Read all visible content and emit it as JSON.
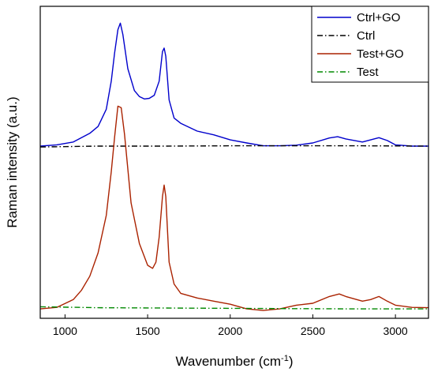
{
  "chart_data": {
    "type": "line",
    "xlabel": "Wavenumber (cm",
    "xlabel_sup": "-1",
    "xlabel_tail": ")",
    "ylabel": "Raman intensity (a.u.)",
    "xlim": [
      850,
      3200
    ],
    "ylim": [
      0,
      1
    ],
    "x_ticks": [
      1000,
      1500,
      2000,
      2500,
      3000
    ],
    "x_tick_labels": [
      "1000",
      "1500",
      "2000",
      "2500",
      "3000"
    ],
    "y_ticks_shown": false,
    "grid": false,
    "legend_position": "top-right",
    "series": [
      {
        "name": "Ctrl+GO",
        "color": "#0000cc",
        "style": "solid",
        "x": [
          850,
          950,
          1050,
          1150,
          1200,
          1250,
          1280,
          1300,
          1320,
          1335,
          1350,
          1380,
          1420,
          1450,
          1480,
          1510,
          1540,
          1570,
          1590,
          1600,
          1610,
          1630,
          1660,
          1700,
          1800,
          1900,
          2000,
          2100,
          2200,
          2300,
          2400,
          2500,
          2600,
          2650,
          2700,
          2800,
          2850,
          2900,
          2950,
          3000,
          3100,
          3200
        ],
        "y": [
          0.552,
          0.556,
          0.565,
          0.593,
          0.615,
          0.67,
          0.76,
          0.85,
          0.925,
          0.946,
          0.91,
          0.8,
          0.73,
          0.711,
          0.703,
          0.705,
          0.715,
          0.76,
          0.855,
          0.866,
          0.84,
          0.7,
          0.642,
          0.625,
          0.6,
          0.588,
          0.572,
          0.562,
          0.553,
          0.553,
          0.555,
          0.562,
          0.578,
          0.582,
          0.575,
          0.565,
          0.572,
          0.579,
          0.57,
          0.556,
          0.552,
          0.552
        ]
      },
      {
        "name": "Ctrl",
        "color": "#000000",
        "style": "dashdot",
        "x": [
          850,
          1200,
          1600,
          2000,
          2400,
          2800,
          3200
        ],
        "y": [
          0.549,
          0.552,
          0.552,
          0.553,
          0.553,
          0.553,
          0.552
        ]
      },
      {
        "name": "Test+GO",
        "color": "#aa2200",
        "style": "solid",
        "x": [
          850,
          950,
          1050,
          1100,
          1150,
          1200,
          1250,
          1280,
          1300,
          1320,
          1340,
          1360,
          1400,
          1450,
          1500,
          1530,
          1550,
          1570,
          1590,
          1600,
          1610,
          1630,
          1660,
          1700,
          1800,
          1900,
          2000,
          2100,
          2200,
          2300,
          2400,
          2500,
          2600,
          2660,
          2700,
          2800,
          2850,
          2900,
          2950,
          3000,
          3100,
          3200
        ],
        "y": [
          0.03,
          0.035,
          0.06,
          0.09,
          0.135,
          0.21,
          0.33,
          0.47,
          0.58,
          0.68,
          0.675,
          0.59,
          0.37,
          0.24,
          0.17,
          0.16,
          0.18,
          0.26,
          0.39,
          0.427,
          0.39,
          0.18,
          0.11,
          0.08,
          0.065,
          0.055,
          0.045,
          0.03,
          0.025,
          0.03,
          0.042,
          0.048,
          0.07,
          0.078,
          0.07,
          0.055,
          0.06,
          0.07,
          0.055,
          0.042,
          0.035,
          0.034
        ]
      },
      {
        "name": "Test",
        "color": "#008800",
        "style": "dashdot",
        "x": [
          850,
          1200,
          1600,
          2000,
          2400,
          2800,
          3200
        ],
        "y": [
          0.037,
          0.034,
          0.033,
          0.032,
          0.031,
          0.03,
          0.03
        ]
      }
    ]
  }
}
